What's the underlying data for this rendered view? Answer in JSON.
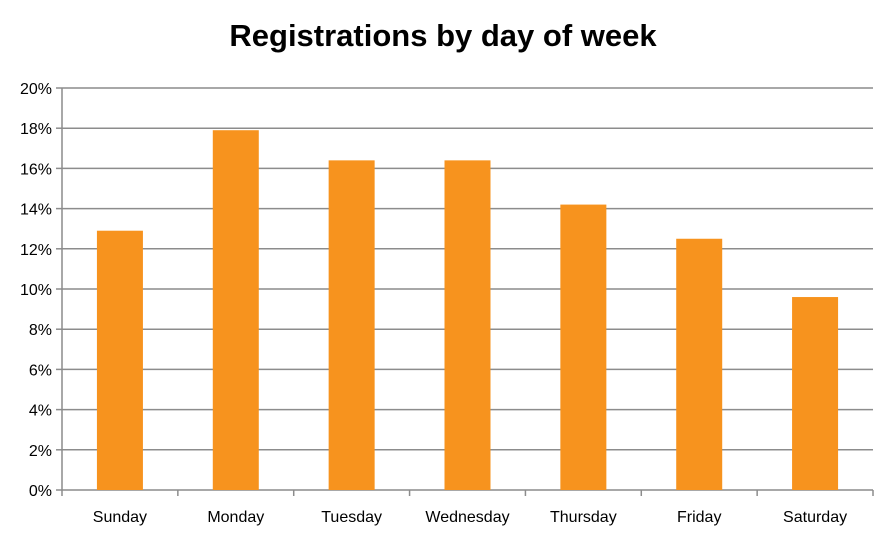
{
  "chart_data": {
    "type": "bar",
    "title": "Registrations by day of week",
    "xlabel": "",
    "ylabel": "",
    "categories": [
      "Sunday",
      "Monday",
      "Tuesday",
      "Wednesday",
      "Thursday",
      "Friday",
      "Saturday"
    ],
    "values": [
      12.9,
      17.9,
      16.4,
      16.4,
      14.2,
      12.5,
      9.6
    ],
    "ylim": [
      0,
      20
    ],
    "yticks": [
      "0%",
      "2%",
      "4%",
      "6%",
      "8%",
      "10%",
      "12%",
      "14%",
      "16%",
      "18%",
      "20%"
    ],
    "grid": true,
    "legend": "none",
    "colors": {
      "bar": "#f7931e",
      "grid": "#8c8c8c",
      "axis": "#8c8c8c"
    }
  }
}
